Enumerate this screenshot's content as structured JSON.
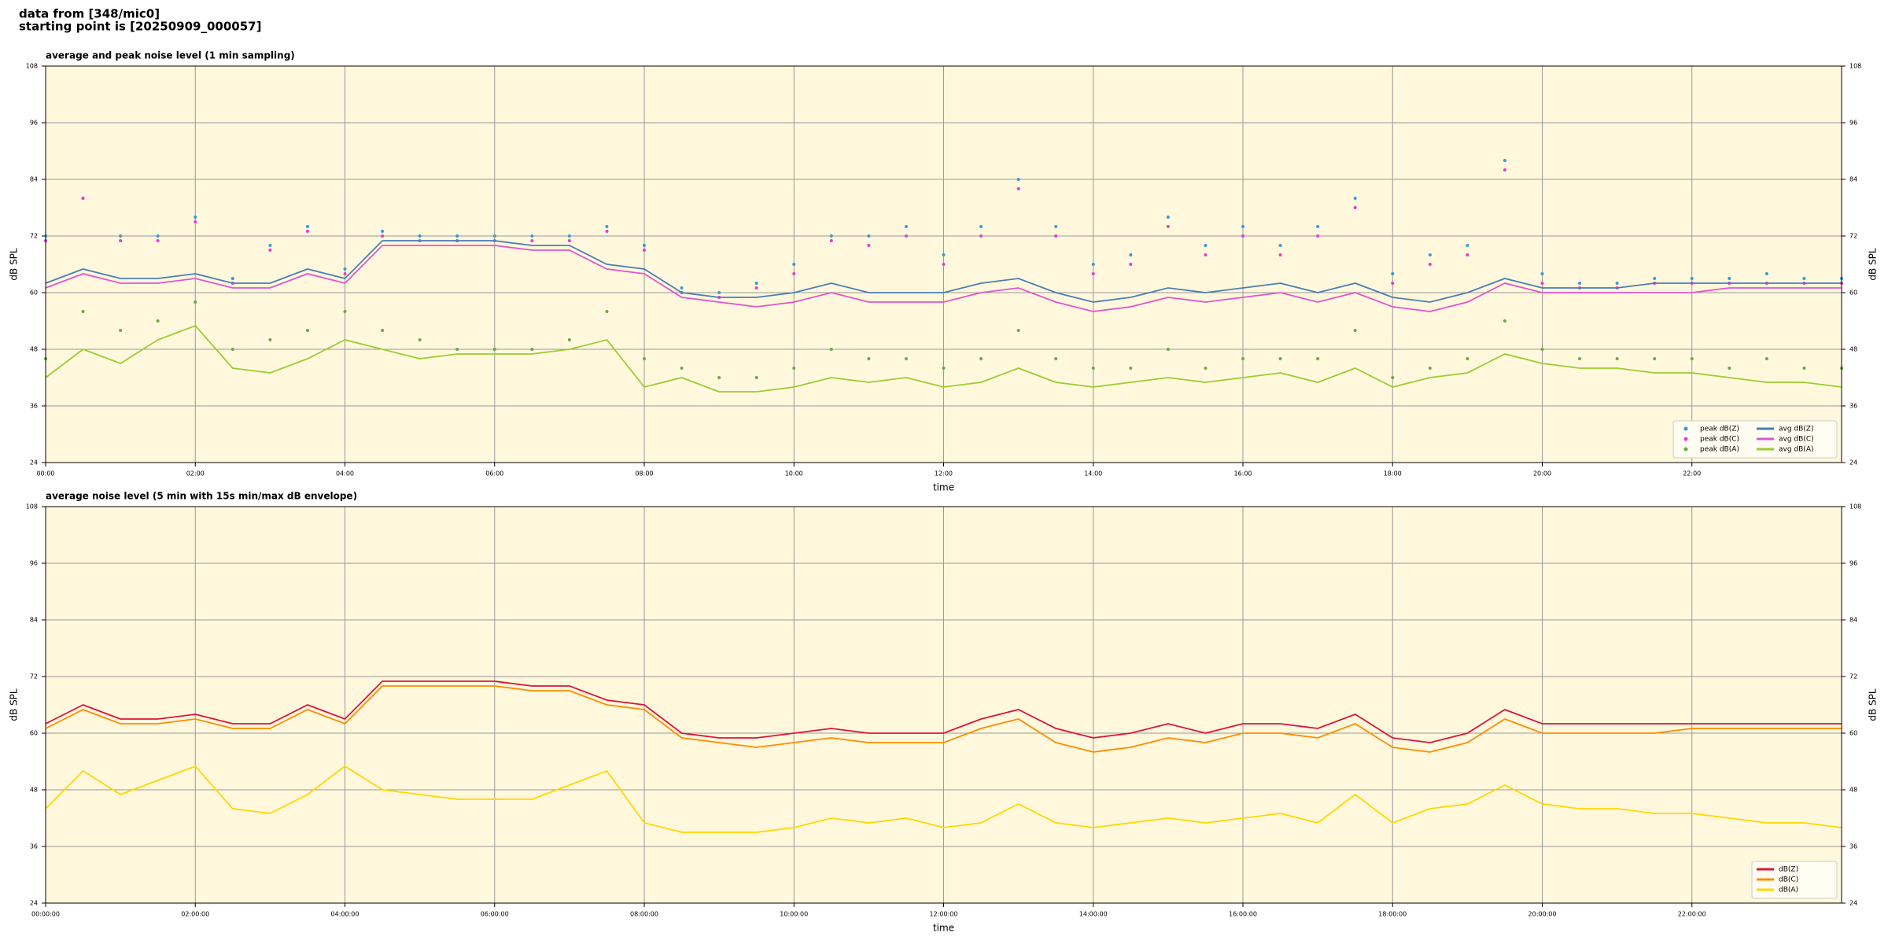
{
  "header": {
    "line1": "data from [348/mic0]",
    "line2": "starting point is [20250909_000057]"
  },
  "chart_data": [
    {
      "type": "line",
      "title": "average and peak noise level (1 min sampling)",
      "xlabel": "time",
      "ylabel": "dB SPL",
      "xlim": [
        0,
        1440
      ],
      "ylim": [
        24,
        108
      ],
      "grid": true,
      "background": "#fff8dc",
      "legend": "lower right",
      "yticks": [
        24,
        36,
        48,
        60,
        72,
        84,
        96,
        108
      ],
      "xticks": [
        {
          "value": 0,
          "label": "00:00"
        },
        {
          "value": 120,
          "label": "02:00"
        },
        {
          "value": 240,
          "label": "04:00"
        },
        {
          "value": 360,
          "label": "06:00"
        },
        {
          "value": 480,
          "label": "08:00"
        },
        {
          "value": 600,
          "label": "10:00"
        },
        {
          "value": 720,
          "label": "12:00"
        },
        {
          "value": 840,
          "label": "14:00"
        },
        {
          "value": 960,
          "label": "16:00"
        },
        {
          "value": 1080,
          "label": "18:00"
        },
        {
          "value": 1200,
          "label": "20:00"
        },
        {
          "value": 1320,
          "label": "22:00"
        }
      ],
      "x": [
        0,
        30,
        60,
        90,
        120,
        150,
        180,
        210,
        240,
        270,
        300,
        330,
        360,
        390,
        420,
        450,
        480,
        510,
        540,
        570,
        600,
        630,
        660,
        690,
        720,
        750,
        780,
        810,
        840,
        870,
        900,
        930,
        960,
        990,
        1020,
        1050,
        1080,
        1110,
        1140,
        1170,
        1200,
        1230,
        1260,
        1290,
        1320,
        1350,
        1380,
        1410,
        1440
      ],
      "series": [
        {
          "name": "peak dB(Z)",
          "type": "scatter",
          "color": "#3a9ad9",
          "values": [
            72,
            80,
            72,
            72,
            76,
            63,
            70,
            74,
            65,
            73,
            72,
            72,
            72,
            72,
            72,
            74,
            70,
            61,
            60,
            62,
            66,
            72,
            72,
            74,
            68,
            74,
            84,
            74,
            66,
            68,
            76,
            70,
            74,
            70,
            74,
            80,
            64,
            68,
            70,
            88,
            64,
            62,
            62,
            63,
            63,
            63,
            64,
            63,
            63
          ]
        },
        {
          "name": "peak dB(C)",
          "type": "scatter",
          "color": "#e83ad6",
          "values": [
            71,
            80,
            71,
            71,
            75,
            62,
            69,
            73,
            64,
            72,
            71,
            71,
            71,
            71,
            71,
            73,
            69,
            60,
            59,
            61,
            64,
            71,
            70,
            72,
            66,
            72,
            82,
            72,
            64,
            66,
            74,
            68,
            72,
            68,
            72,
            78,
            62,
            66,
            68,
            86,
            62,
            61,
            61,
            62,
            62,
            62,
            62,
            62,
            62
          ]
        },
        {
          "name": "peak dB(A)",
          "type": "scatter",
          "color": "#6aa84f",
          "values": [
            46,
            56,
            52,
            54,
            58,
            48,
            50,
            52,
            56,
            52,
            50,
            48,
            48,
            48,
            50,
            56,
            46,
            44,
            42,
            42,
            44,
            48,
            46,
            46,
            44,
            46,
            52,
            46,
            44,
            44,
            48,
            44,
            46,
            46,
            46,
            52,
            42,
            44,
            46,
            54,
            48,
            46,
            46,
            46,
            46,
            44,
            46,
            44,
            44
          ]
        },
        {
          "name": "avg dB(Z)",
          "type": "line",
          "color": "#4a7fb5",
          "values": [
            62,
            65,
            63,
            63,
            64,
            62,
            62,
            65,
            63,
            71,
            71,
            71,
            71,
            70,
            70,
            66,
            65,
            60,
            59,
            59,
            60,
            62,
            60,
            60,
            60,
            62,
            63,
            60,
            58,
            59,
            61,
            60,
            61,
            62,
            60,
            62,
            59,
            58,
            60,
            63,
            61,
            61,
            61,
            62,
            62,
            62,
            62,
            62,
            62
          ]
        },
        {
          "name": "avg dB(C)",
          "type": "line",
          "color": "#e055d0",
          "values": [
            61,
            64,
            62,
            62,
            63,
            61,
            61,
            64,
            62,
            70,
            70,
            70,
            70,
            69,
            69,
            65,
            64,
            59,
            58,
            57,
            58,
            60,
            58,
            58,
            58,
            60,
            61,
            58,
            56,
            57,
            59,
            58,
            59,
            60,
            58,
            60,
            57,
            56,
            58,
            62,
            60,
            60,
            60,
            60,
            60,
            61,
            61,
            61,
            61
          ]
        },
        {
          "name": "avg dB(A)",
          "type": "line",
          "color": "#9acd32",
          "values": [
            42,
            48,
            45,
            50,
            53,
            44,
            43,
            46,
            50,
            48,
            46,
            47,
            47,
            47,
            48,
            50,
            40,
            42,
            39,
            39,
            40,
            42,
            41,
            42,
            40,
            41,
            44,
            41,
            40,
            41,
            42,
            41,
            42,
            43,
            41,
            44,
            40,
            42,
            43,
            47,
            45,
            44,
            44,
            43,
            43,
            42,
            41,
            41,
            40
          ]
        }
      ]
    },
    {
      "type": "line",
      "title": "average noise level (5 min with 15s min/max dB envelope)",
      "xlabel": "time",
      "ylabel": "dB SPL",
      "xlim": [
        0,
        1440
      ],
      "ylim": [
        24,
        108
      ],
      "grid": true,
      "background": "#fff8dc",
      "legend": "lower right",
      "yticks": [
        24,
        36,
        48,
        60,
        72,
        84,
        96,
        108
      ],
      "xticks": [
        {
          "value": 0,
          "label": "00:00:00"
        },
        {
          "value": 120,
          "label": "02:00:00"
        },
        {
          "value": 240,
          "label": "04:00:00"
        },
        {
          "value": 360,
          "label": "06:00:00"
        },
        {
          "value": 480,
          "label": "08:00:00"
        },
        {
          "value": 600,
          "label": "10:00:00"
        },
        {
          "value": 720,
          "label": "12:00:00"
        },
        {
          "value": 840,
          "label": "14:00:00"
        },
        {
          "value": 960,
          "label": "16:00:00"
        },
        {
          "value": 1080,
          "label": "18:00:00"
        },
        {
          "value": 1200,
          "label": "20:00:00"
        },
        {
          "value": 1320,
          "label": "22:00:00"
        }
      ],
      "x": [
        0,
        30,
        60,
        90,
        120,
        150,
        180,
        210,
        240,
        270,
        300,
        330,
        360,
        390,
        420,
        450,
        480,
        510,
        540,
        570,
        600,
        630,
        660,
        690,
        720,
        750,
        780,
        810,
        840,
        870,
        900,
        930,
        960,
        990,
        1020,
        1050,
        1080,
        1110,
        1140,
        1170,
        1200,
        1230,
        1260,
        1290,
        1320,
        1350,
        1380,
        1410,
        1440
      ],
      "series": [
        {
          "name": "dB(Z)",
          "type": "line",
          "color": "#dc143c",
          "values": [
            62,
            66,
            63,
            63,
            64,
            62,
            62,
            66,
            63,
            71,
            71,
            71,
            71,
            70,
            70,
            67,
            66,
            60,
            59,
            59,
            60,
            61,
            60,
            60,
            60,
            63,
            65,
            61,
            59,
            60,
            62,
            60,
            62,
            62,
            61,
            64,
            59,
            58,
            60,
            65,
            62,
            62,
            62,
            62,
            62,
            62,
            62,
            62,
            62
          ]
        },
        {
          "name": "dB(C)",
          "type": "line",
          "color": "#ff8c00",
          "values": [
            61,
            65,
            62,
            62,
            63,
            61,
            61,
            65,
            62,
            70,
            70,
            70,
            70,
            69,
            69,
            66,
            65,
            59,
            58,
            57,
            58,
            59,
            58,
            58,
            58,
            61,
            63,
            58,
            56,
            57,
            59,
            58,
            60,
            60,
            59,
            62,
            57,
            56,
            58,
            63,
            60,
            60,
            60,
            60,
            61,
            61,
            61,
            61,
            61
          ]
        },
        {
          "name": "dB(A)",
          "type": "line",
          "color": "#ffd700",
          "values": [
            44,
            52,
            47,
            50,
            53,
            44,
            43,
            47,
            53,
            48,
            47,
            46,
            46,
            46,
            49,
            52,
            41,
            39,
            39,
            39,
            40,
            42,
            41,
            42,
            40,
            41,
            45,
            41,
            40,
            41,
            42,
            41,
            42,
            43,
            41,
            47,
            41,
            44,
            45,
            49,
            45,
            44,
            44,
            43,
            43,
            42,
            41,
            41,
            40
          ]
        }
      ]
    }
  ]
}
